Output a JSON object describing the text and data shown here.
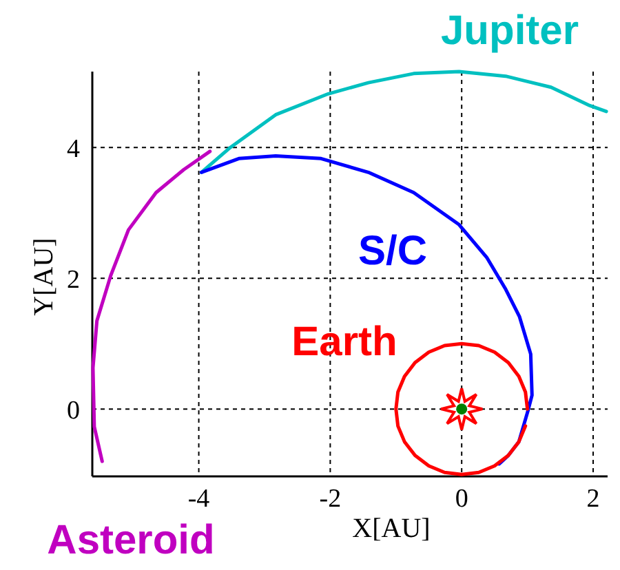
{
  "chart_data": {
    "type": "line",
    "xlabel": "X[AU]",
    "ylabel": "Y[AU]",
    "xlim": [
      -5.62,
      2.22
    ],
    "ylim": [
      -1.03,
      5.16
    ],
    "xticks": [
      -4,
      -2,
      0,
      2
    ],
    "yticks": [
      0,
      2,
      4
    ],
    "grid": true,
    "marker": "none",
    "line_style": "solid",
    "series": [
      {
        "name": "Jupiter",
        "color": "#00c0c0",
        "x": [
          -3.96,
          -3.52,
          -2.83,
          -2.03,
          -1.42,
          -0.73,
          -0.04,
          0.67,
          1.36,
          1.95,
          2.2
        ],
        "values": [
          3.62,
          4.0,
          4.5,
          4.82,
          4.99,
          5.13,
          5.16,
          5.09,
          4.92,
          4.64,
          4.55
        ]
      },
      {
        "name": "S/C",
        "color": "#0000ff",
        "x": [
          -3.96,
          -3.39,
          -2.83,
          -2.14,
          -1.42,
          -0.73,
          -0.04,
          0.38,
          0.67,
          0.88,
          1.05,
          1.07,
          1.01,
          0.87,
          0.71,
          0.57
        ],
        "values": [
          3.62,
          3.83,
          3.87,
          3.83,
          3.62,
          3.31,
          2.82,
          2.32,
          1.83,
          1.41,
          0.84,
          0.21,
          -0.02,
          -0.5,
          -0.71,
          -0.84
        ]
      },
      {
        "name": "Earth",
        "color": "#ff0000",
        "x": [
          1,
          0.97,
          0.87,
          0.71,
          0.5,
          0.26,
          0,
          -0.26,
          -0.5,
          -0.71,
          -0.87,
          -0.97,
          -1,
          -0.97,
          -0.87,
          -0.71,
          -0.5,
          -0.26,
          0,
          0.26,
          0.5,
          0.71,
          0.87,
          0.97
        ],
        "values": [
          0,
          0.26,
          0.5,
          0.71,
          0.87,
          0.97,
          1,
          0.97,
          0.87,
          0.71,
          0.5,
          0.26,
          0,
          -0.26,
          -0.5,
          -0.71,
          -0.87,
          -0.97,
          -1,
          -0.97,
          -0.87,
          -0.71,
          -0.5,
          -0.26
        ]
      },
      {
        "name": "Asteroid",
        "color": "#c000c0",
        "x": [
          -5.47,
          -5.59,
          -5.61,
          -5.55,
          -5.34,
          -5.07,
          -4.65,
          -4.23,
          -3.83
        ],
        "values": [
          -0.8,
          -0.27,
          0.63,
          1.35,
          2.04,
          2.74,
          3.31,
          3.66,
          3.94
        ]
      }
    ]
  }
}
